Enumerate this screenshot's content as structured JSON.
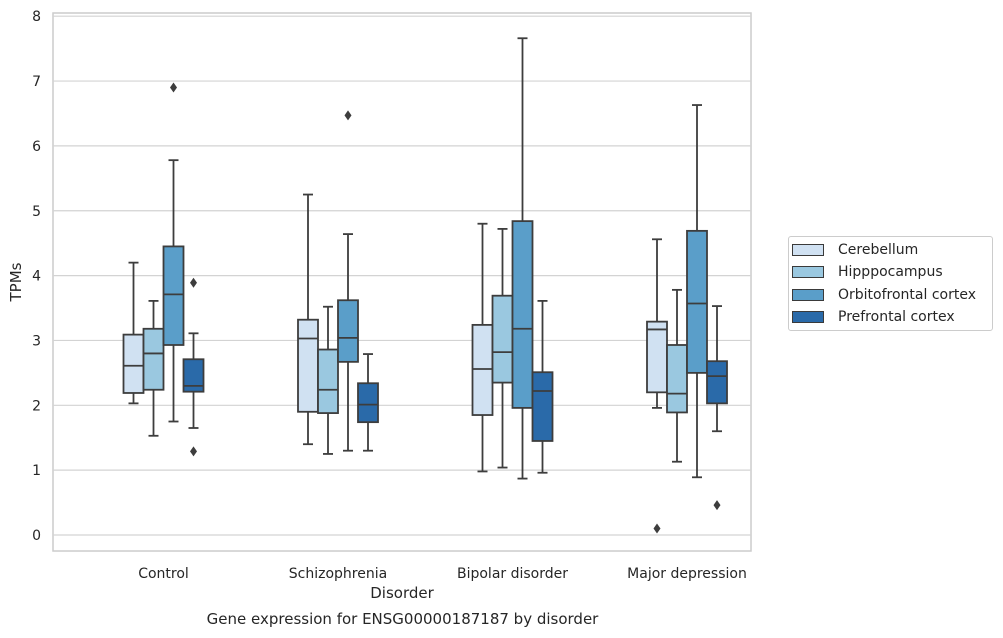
{
  "caption": "Gene expression for ENSG00000187187 by disorder",
  "chart_data": {
    "type": "box",
    "title": "",
    "xlabel": "Disorder",
    "ylabel": "TPMs",
    "ylim": [
      -0.25,
      8.05
    ],
    "yticks": [
      0,
      1,
      2,
      3,
      4,
      5,
      6,
      7,
      8
    ],
    "grid": true,
    "legend_position": "right",
    "categories": [
      "Control",
      "Schizophrenia",
      "Bipolar disorder",
      "Major depression"
    ],
    "series": [
      {
        "name": "Cerebellum",
        "color": "#d0e1f2",
        "boxes": [
          {
            "whisker_low": 2.03,
            "q1": 2.19,
            "median": 2.61,
            "q3": 3.09,
            "whisker_high": 4.2,
            "outliers": []
          },
          {
            "whisker_low": 1.4,
            "q1": 1.9,
            "median": 3.03,
            "q3": 3.32,
            "whisker_high": 5.25,
            "outliers": []
          },
          {
            "whisker_low": 0.98,
            "q1": 1.85,
            "median": 2.56,
            "q3": 3.24,
            "whisker_high": 4.8,
            "outliers": []
          },
          {
            "whisker_low": 1.96,
            "q1": 2.2,
            "median": 3.17,
            "q3": 3.29,
            "whisker_high": 4.56,
            "outliers": [
              0.1
            ]
          }
        ]
      },
      {
        "name": "Hipppocampus",
        "color": "#9ac8e0",
        "boxes": [
          {
            "whisker_low": 1.53,
            "q1": 2.24,
            "median": 2.8,
            "q3": 3.18,
            "whisker_high": 3.61,
            "outliers": []
          },
          {
            "whisker_low": 1.25,
            "q1": 1.88,
            "median": 2.24,
            "q3": 2.86,
            "whisker_high": 3.52,
            "outliers": []
          },
          {
            "whisker_low": 1.04,
            "q1": 2.35,
            "median": 2.82,
            "q3": 3.69,
            "whisker_high": 4.72,
            "outliers": []
          },
          {
            "whisker_low": 1.13,
            "q1": 1.89,
            "median": 2.18,
            "q3": 2.93,
            "whisker_high": 3.78,
            "outliers": []
          }
        ]
      },
      {
        "name": "Orbitofrontal cortex",
        "color": "#5a9ec9",
        "boxes": [
          {
            "whisker_low": 1.75,
            "q1": 2.93,
            "median": 3.71,
            "q3": 4.45,
            "whisker_high": 5.78,
            "outliers": [
              6.9
            ]
          },
          {
            "whisker_low": 1.3,
            "q1": 2.67,
            "median": 3.04,
            "q3": 3.62,
            "whisker_high": 4.64,
            "outliers": [
              6.47
            ]
          },
          {
            "whisker_low": 0.87,
            "q1": 1.96,
            "median": 3.18,
            "q3": 4.84,
            "whisker_high": 7.66,
            "outliers": []
          },
          {
            "whisker_low": 0.89,
            "q1": 2.5,
            "median": 3.57,
            "q3": 4.69,
            "whisker_high": 6.63,
            "outliers": []
          }
        ]
      },
      {
        "name": "Prefrontal cortex",
        "color": "#2a6aa9",
        "boxes": [
          {
            "whisker_low": 1.65,
            "q1": 2.21,
            "median": 2.3,
            "q3": 2.71,
            "whisker_high": 3.11,
            "outliers": [
              3.89,
              1.29
            ]
          },
          {
            "whisker_low": 1.3,
            "q1": 1.74,
            "median": 2.01,
            "q3": 2.34,
            "whisker_high": 2.79,
            "outliers": []
          },
          {
            "whisker_low": 0.96,
            "q1": 1.45,
            "median": 2.22,
            "q3": 2.51,
            "whisker_high": 3.61,
            "outliers": []
          },
          {
            "whisker_low": 1.6,
            "q1": 2.03,
            "median": 2.45,
            "q3": 2.68,
            "whisker_high": 3.53,
            "outliers": [
              0.46
            ]
          }
        ]
      }
    ]
  }
}
